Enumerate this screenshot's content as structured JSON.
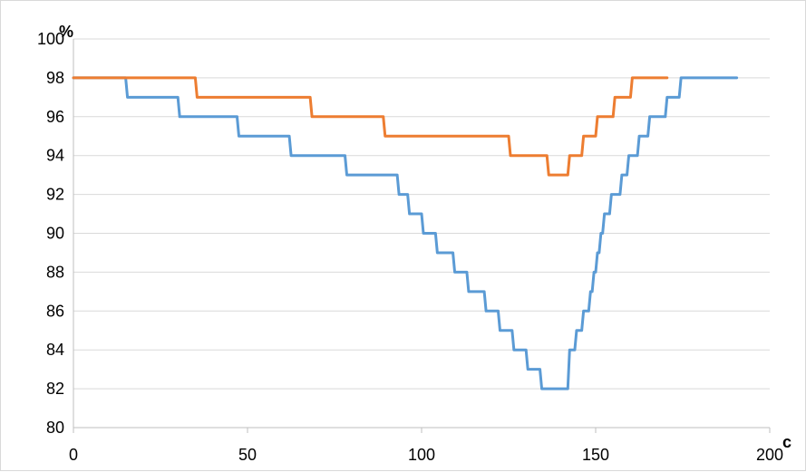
{
  "chart_data": {
    "type": "line",
    "title": "",
    "xlabel": "c",
    "ylabel": "%",
    "xlim": [
      0,
      200
    ],
    "ylim": [
      80,
      100
    ],
    "x_ticks": [
      0,
      50,
      100,
      150,
      200
    ],
    "y_ticks": [
      80,
      82,
      84,
      86,
      88,
      90,
      92,
      94,
      96,
      98,
      100
    ],
    "x_tick_labels": [
      "0",
      "50",
      "100",
      "150",
      "200"
    ],
    "y_tick_labels": [
      "80",
      "82",
      "84",
      "86",
      "88",
      "90",
      "92",
      "94",
      "96",
      "98",
      "100"
    ],
    "grid": "horizontal",
    "legend": "none",
    "step": true,
    "series": [
      {
        "color": "#5b9bd5",
        "x": [
          0,
          15,
          30,
          47,
          62,
          78,
          93,
          96,
          100,
          104,
          109,
          113,
          118,
          122,
          126,
          130,
          134,
          138,
          142,
          144,
          146,
          148,
          149,
          150,
          151,
          152,
          154,
          157,
          159,
          162,
          165,
          170,
          174,
          178,
          184,
          190
        ],
        "y": [
          98,
          97,
          96,
          95,
          94,
          93,
          92,
          91,
          90,
          89,
          88,
          87,
          86,
          85,
          84,
          83,
          82,
          82,
          84,
          85,
          86,
          87,
          88,
          89,
          90,
          91,
          92,
          93,
          94,
          95,
          96,
          97,
          98,
          98,
          98,
          98
        ]
      },
      {
        "color": "#ed7d31",
        "x": [
          0,
          35,
          68,
          89,
          125,
          136,
          142,
          146,
          150,
          155,
          160,
          165,
          170
        ],
        "y": [
          98,
          97,
          96,
          95,
          94,
          93,
          94,
          95,
          96,
          97,
          98,
          98,
          98
        ]
      }
    ]
  }
}
